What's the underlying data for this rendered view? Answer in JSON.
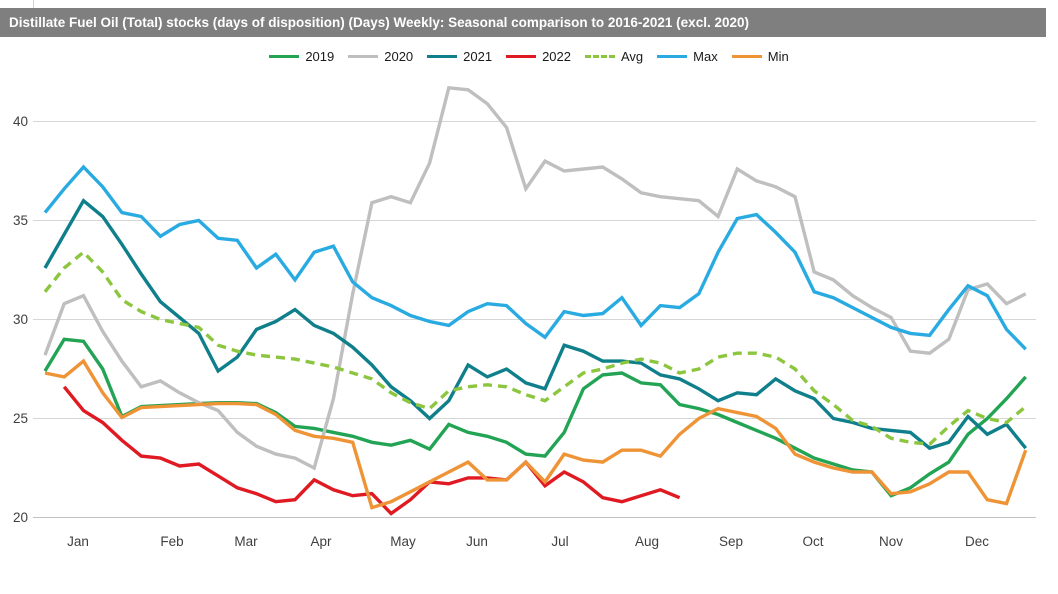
{
  "title": "Distillate Fuel Oil (Total) stocks (days of disposition) (Days) Weekly: Seasonal comparison to 2016-2021 (excl. 2020)",
  "colors": {
    "titlebar_bg": "#7f7f7f",
    "titlebar_text": "#ffffff",
    "gridline": "#d6d6d6",
    "baseline": "#c2c2c2",
    "axis_text": "#3f3f3f"
  },
  "chart_data": {
    "type": "line",
    "title": "Distillate Fuel Oil (Total) stocks (days of disposition) (Days) Weekly: Seasonal comparison to 2016-2021 (excl. 2020)",
    "x_unit": "week of year (52 weekly points)",
    "legend_position": "top-center",
    "grid": "horizontal only",
    "ylim": [
      20,
      42
    ],
    "yticks": [
      20,
      25,
      30,
      35,
      40
    ],
    "months": [
      "Jan",
      "Feb",
      "Mar",
      "Apr",
      "May",
      "Jun",
      "Jul",
      "Aug",
      "Sep",
      "Oct",
      "Nov",
      "Dec"
    ],
    "series": [
      {
        "name": "2019",
        "color": "#23a455",
        "style": "solid",
        "values": [
          27.4,
          29.0,
          28.9,
          27.5,
          25.1,
          25.6,
          25.65,
          25.7,
          25.75,
          25.8,
          25.8,
          25.75,
          25.3,
          24.6,
          24.5,
          24.3,
          24.1,
          23.8,
          23.65,
          23.9,
          23.45,
          24.7,
          24.3,
          24.1,
          23.8,
          23.2,
          23.1,
          24.3,
          26.5,
          27.2,
          27.3,
          26.8,
          26.7,
          25.7,
          25.5,
          25.2,
          24.8,
          24.4,
          24.0,
          23.5,
          23.0,
          22.7,
          22.4,
          22.3,
          21.1,
          21.5,
          22.2,
          22.8,
          24.2,
          25.0,
          26.0,
          27.1
        ]
      },
      {
        "name": "2020",
        "color": "#bfbfbf",
        "style": "solid",
        "values": [
          28.2,
          30.8,
          31.2,
          29.4,
          27.9,
          26.6,
          26.9,
          26.3,
          25.8,
          25.4,
          24.3,
          23.6,
          23.2,
          23.0,
          22.5,
          26.0,
          31.3,
          35.9,
          36.2,
          35.9,
          37.9,
          41.7,
          41.6,
          40.9,
          39.7,
          36.6,
          38.0,
          37.5,
          37.6,
          37.7,
          37.1,
          36.4,
          36.2,
          36.1,
          36.0,
          35.2,
          37.6,
          37.0,
          36.7,
          36.2,
          32.4,
          32.0,
          31.2,
          30.6,
          30.1,
          28.4,
          28.3,
          29.0,
          31.5,
          31.8,
          30.8,
          31.3
        ]
      },
      {
        "name": "2021",
        "color": "#0f7f8b",
        "style": "solid",
        "values": [
          32.6,
          34.3,
          36.0,
          35.2,
          33.8,
          32.3,
          30.9,
          30.1,
          29.3,
          27.4,
          28.1,
          29.5,
          29.9,
          30.5,
          29.7,
          29.3,
          28.6,
          27.7,
          26.6,
          25.9,
          25.0,
          25.9,
          27.7,
          27.1,
          27.5,
          26.8,
          26.5,
          28.7,
          28.4,
          27.9,
          27.9,
          27.8,
          27.2,
          27.0,
          26.5,
          25.9,
          26.3,
          26.2,
          27.0,
          26.4,
          26.0,
          25.0,
          24.8,
          24.5,
          24.4,
          24.3,
          23.5,
          23.8,
          25.1,
          24.2,
          24.7,
          23.5
        ]
      },
      {
        "name": "2022",
        "color": "#e01a22",
        "style": "solid",
        "values": [
          null,
          26.6,
          25.4,
          24.8,
          23.9,
          23.1,
          23.0,
          22.6,
          22.7,
          22.1,
          21.5,
          21.2,
          20.8,
          20.9,
          21.9,
          21.4,
          21.1,
          21.2,
          20.2,
          20.9,
          21.8,
          21.7,
          22.0,
          22.0,
          21.9,
          22.8,
          21.6,
          22.3,
          21.8,
          21.0,
          20.8,
          21.1,
          21.4,
          21.0,
          null,
          null,
          null,
          null,
          null,
          null,
          null,
          null,
          null,
          null,
          null,
          null,
          null,
          null,
          null,
          null,
          null,
          null
        ]
      },
      {
        "name": "Avg",
        "color": "#8cc63f",
        "style": "dashed",
        "values": [
          31.4,
          32.6,
          33.4,
          32.4,
          31.0,
          30.4,
          30.0,
          29.8,
          29.6,
          28.7,
          28.4,
          28.2,
          28.1,
          28.0,
          27.8,
          27.6,
          27.3,
          27.0,
          26.3,
          25.8,
          25.5,
          26.4,
          26.6,
          26.7,
          26.6,
          26.2,
          25.9,
          26.6,
          27.3,
          27.5,
          27.8,
          28.0,
          27.8,
          27.3,
          27.5,
          28.1,
          28.3,
          28.3,
          28.1,
          27.5,
          26.4,
          25.7,
          24.9,
          24.6,
          24.0,
          23.8,
          23.7,
          24.6,
          25.4,
          25.0,
          24.8,
          25.6
        ]
      },
      {
        "name": "Max",
        "color": "#29abe2",
        "style": "solid",
        "values": [
          35.4,
          36.6,
          37.7,
          36.7,
          35.4,
          35.2,
          34.2,
          34.8,
          35.0,
          34.1,
          34.0,
          32.6,
          33.3,
          32.0,
          33.4,
          33.7,
          31.9,
          31.1,
          30.7,
          30.2,
          29.9,
          29.7,
          30.4,
          30.8,
          30.7,
          29.8,
          29.1,
          30.4,
          30.2,
          30.3,
          31.1,
          29.7,
          30.7,
          30.6,
          31.3,
          33.4,
          35.1,
          35.3,
          34.4,
          33.4,
          31.4,
          31.1,
          30.6,
          30.1,
          29.6,
          29.3,
          29.2,
          30.5,
          31.7,
          31.2,
          29.5,
          28.5
        ]
      },
      {
        "name": "Min",
        "color": "#ef9436",
        "style": "solid",
        "values": [
          27.3,
          27.1,
          27.9,
          26.3,
          25.05,
          25.55,
          25.6,
          25.65,
          25.7,
          25.75,
          25.75,
          25.7,
          25.2,
          24.4,
          24.1,
          24.0,
          23.8,
          20.5,
          20.8,
          21.3,
          21.8,
          22.3,
          22.8,
          21.9,
          21.9,
          22.8,
          21.8,
          23.2,
          22.9,
          22.8,
          23.4,
          23.4,
          23.1,
          24.2,
          25.0,
          25.5,
          25.3,
          25.1,
          24.5,
          23.2,
          22.8,
          22.5,
          22.3,
          22.3,
          21.2,
          21.3,
          21.7,
          22.3,
          22.3,
          20.9,
          20.7,
          23.4
        ]
      }
    ]
  }
}
